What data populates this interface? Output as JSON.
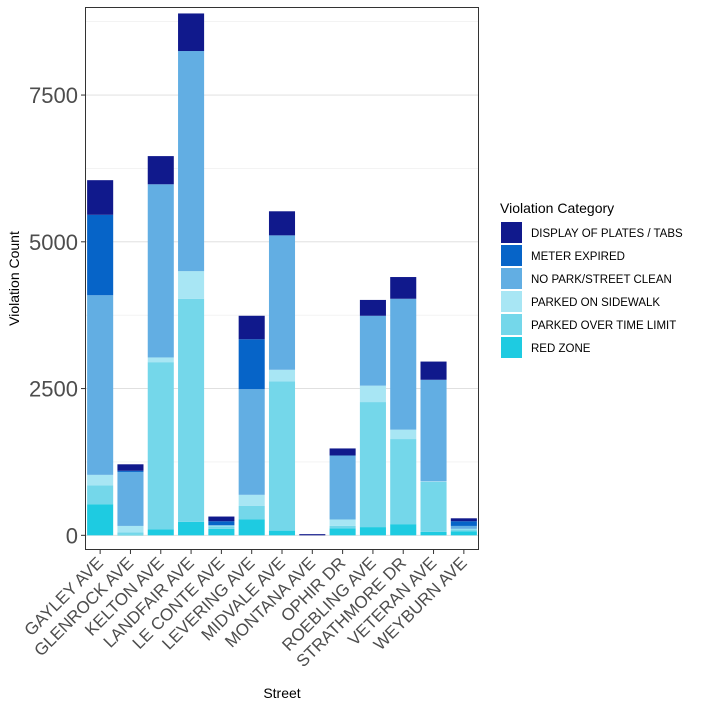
{
  "chart_data": {
    "type": "bar",
    "stacked": true,
    "title": "",
    "xlabel": "Street",
    "ylabel": "Violation Count",
    "ylim": [
      -250,
      9000
    ],
    "yticks": [
      0,
      2500,
      5000,
      7500
    ],
    "grid": true,
    "legend_title": "Violation Category",
    "legend_position": "right",
    "categories": [
      "GAYLEY AVE",
      "GLENROCK AVE",
      "KELTON AVE",
      "LANDFAIR AVE",
      "LE CONTE AVE",
      "LEVERING AVE",
      "MIDVALE AVE",
      "MONTANA AVE",
      "OPHIR DR",
      "ROEBLING AVE",
      "STRATHMORE DR",
      "VETERAN AVE",
      "WEYBURN AVE"
    ],
    "series": [
      {
        "name": "RED ZONE",
        "color": "#1ECBE1",
        "values": [
          530,
          10,
          100,
          230,
          110,
          270,
          80,
          0,
          120,
          140,
          190,
          60,
          70
        ]
      },
      {
        "name": "PARKED OVER TIME LIMIT",
        "color": "#74D7EA",
        "values": [
          320,
          40,
          2850,
          3800,
          40,
          230,
          2540,
          0,
          40,
          2130,
          1450,
          850,
          30
        ]
      },
      {
        "name": "PARKED ON SIDEWALK",
        "color": "#A8E6F4",
        "values": [
          180,
          110,
          80,
          470,
          20,
          190,
          200,
          0,
          110,
          280,
          160,
          10,
          10
        ]
      },
      {
        "name": "NO PARK/STREET CLEAN",
        "color": "#62AEE3",
        "values": [
          3060,
          920,
          2950,
          3750,
          0,
          1800,
          2290,
          0,
          1090,
          1190,
          2230,
          1730,
          50
        ]
      },
      {
        "name": "METER EXPIRED",
        "color": "#0664C8",
        "values": [
          1370,
          20,
          0,
          0,
          70,
          850,
          0,
          0,
          0,
          0,
          0,
          0,
          80
        ]
      },
      {
        "name": "DISPLAY OF PLATES / TABS",
        "color": "#10198C",
        "values": [
          590,
          110,
          480,
          640,
          80,
          400,
          410,
          20,
          120,
          270,
          370,
          310,
          50
        ]
      }
    ]
  }
}
